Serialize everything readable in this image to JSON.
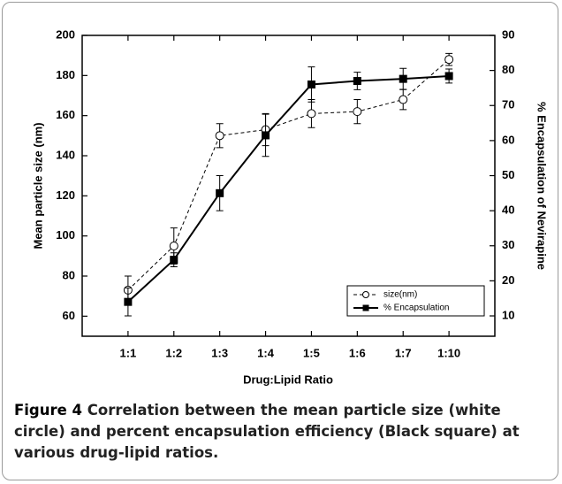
{
  "chart_data": {
    "type": "line",
    "xlabel": "Drug:Lipid Ratio",
    "ylabel": "Mean particle size (nm)",
    "y2label": "% Encapsulation of Nevirapine",
    "categories": [
      "1:1",
      "1:2",
      "1:3",
      "1:4",
      "1:5",
      "1:6",
      "1:7",
      "1:10"
    ],
    "ylim": [
      50,
      200
    ],
    "yticks": [
      60,
      80,
      100,
      120,
      140,
      160,
      180,
      200
    ],
    "y2lim": [
      4.2,
      90
    ],
    "y2ticks": [
      10,
      20,
      30,
      40,
      50,
      60,
      70,
      80,
      90
    ],
    "legend": "lower right",
    "series": [
      {
        "name": "size(nm)",
        "color": "#000000",
        "marker": "circle",
        "dashed": true,
        "values": [
          73,
          95,
          150,
          153,
          161,
          162,
          168,
          188
        ],
        "errors": [
          7,
          9,
          6,
          8,
          7,
          6,
          5,
          3
        ]
      },
      {
        "name": "% Encapsulation",
        "color": "#000000",
        "marker": "square",
        "dashed": false,
        "axis": "y2",
        "values": [
          14,
          26,
          45,
          61.5,
          76,
          77,
          77.6,
          78.4
        ],
        "errors": [
          4,
          2,
          5,
          6,
          5,
          2.5,
          3,
          2
        ]
      }
    ]
  },
  "caption": {
    "label": "Figure 4",
    "text": "Correlation between the mean particle size (white circle) and percent encapsulation efficiency (Black square) at various drug-lipid ratios."
  }
}
